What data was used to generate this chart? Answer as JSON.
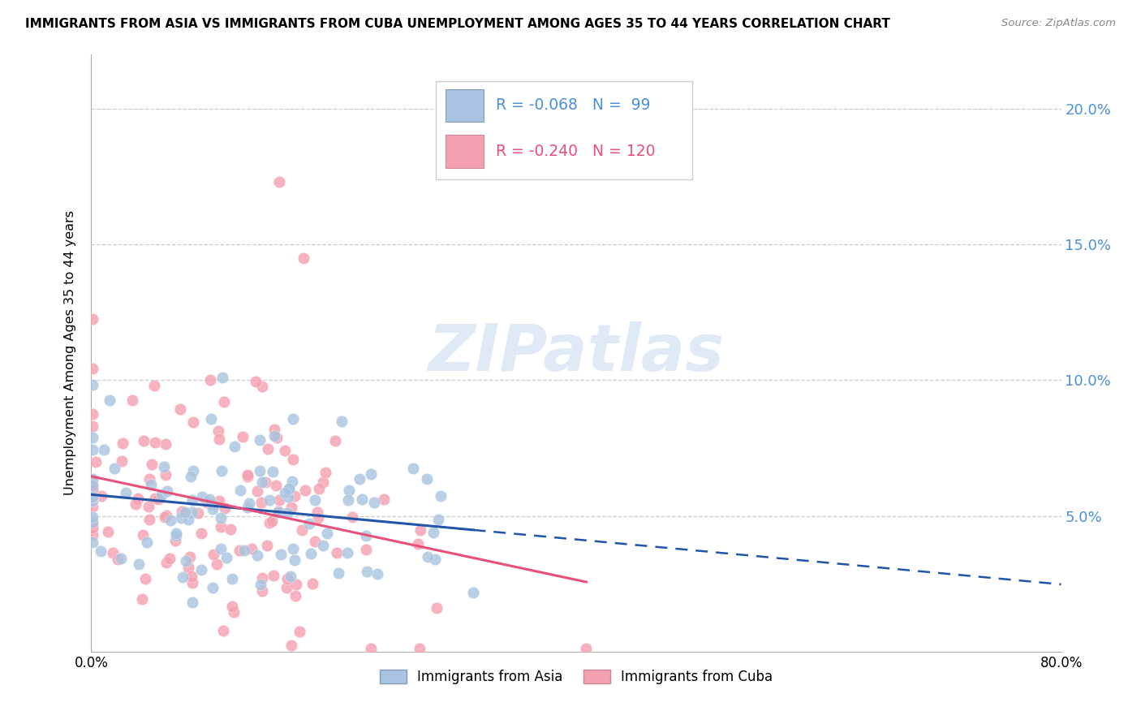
{
  "title": "IMMIGRANTS FROM ASIA VS IMMIGRANTS FROM CUBA UNEMPLOYMENT AMONG AGES 35 TO 44 YEARS CORRELATION CHART",
  "source": "Source: ZipAtlas.com",
  "ylabel": "Unemployment Among Ages 35 to 44 years",
  "xlim": [
    0.0,
    0.8
  ],
  "ylim": [
    0.0,
    0.22
  ],
  "yticks": [
    0.05,
    0.1,
    0.15,
    0.2
  ],
  "ytick_labels": [
    "5.0%",
    "10.0%",
    "15.0%",
    "20.0%"
  ],
  "legend_label1": "Immigrants from Asia",
  "legend_label2": "Immigrants from Cuba",
  "r1": "-0.068",
  "n1": "99",
  "r2": "-0.240",
  "n2": "120",
  "color_asia": "#a8c4e0",
  "color_cuba": "#f4a0b0",
  "color_asia_line": "#2255aa",
  "color_cuba_line": "#e8507a",
  "color_axis_right": "#4a90d9",
  "seed": 42
}
